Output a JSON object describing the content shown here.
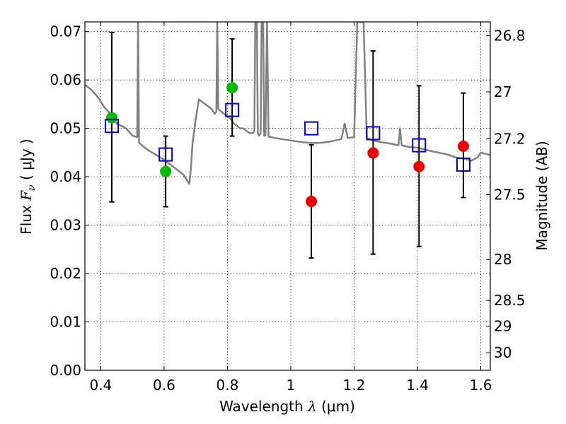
{
  "chart_data": {
    "type": "scatter",
    "xlabel": {
      "prefix": "Wavelength  ",
      "symbol": "λ",
      "unit": " (μm)"
    },
    "ylabel": {
      "prefix": "Flux  ",
      "symbol": "F",
      "subscript": "ν",
      "unit": "  ( μJy )"
    },
    "y2label": "Magnitude (AB)",
    "xlim": [
      0.35,
      1.63
    ],
    "ylim": [
      0.0,
      0.072
    ],
    "x_ticks": [
      {
        "value": 0.4,
        "label": "0.4"
      },
      {
        "value": 0.6,
        "label": "0.6"
      },
      {
        "value": 0.8,
        "label": "0.8"
      },
      {
        "value": 1.0,
        "label": "1"
      },
      {
        "value": 1.2,
        "label": "1.2"
      },
      {
        "value": 1.4,
        "label": "1.4"
      },
      {
        "value": 1.6,
        "label": "1.6"
      }
    ],
    "y_ticks": [
      {
        "value": 0.0,
        "label": "0.00"
      },
      {
        "value": 0.01,
        "label": "0.01"
      },
      {
        "value": 0.02,
        "label": "0.02"
      },
      {
        "value": 0.03,
        "label": "0.03"
      },
      {
        "value": 0.04,
        "label": "0.04"
      },
      {
        "value": 0.05,
        "label": "0.05"
      },
      {
        "value": 0.06,
        "label": "0.06"
      },
      {
        "value": 0.07,
        "label": "0.07"
      }
    ],
    "y2_ticks": [
      {
        "value": 26.8,
        "label": "26.8"
      },
      {
        "value": 27.0,
        "label": "27"
      },
      {
        "value": 27.2,
        "label": "27.2"
      },
      {
        "value": 27.5,
        "label": "27.5"
      },
      {
        "value": 28.0,
        "label": "28"
      },
      {
        "value": 28.5,
        "label": "28.5"
      },
      {
        "value": 29.0,
        "label": "29"
      },
      {
        "value": 30.0,
        "label": "30"
      }
    ],
    "grid": true,
    "series": [
      {
        "kind": "line",
        "color": "#808080",
        "points": [
          [
            0.35,
            0.059
          ],
          [
            0.37,
            0.058
          ],
          [
            0.39,
            0.0565
          ],
          [
            0.41,
            0.0545
          ],
          [
            0.43,
            0.053
          ],
          [
            0.45,
            0.051
          ],
          [
            0.48,
            0.05
          ],
          [
            0.5,
            0.0485
          ],
          [
            0.515,
            0.0482
          ],
          [
            0.518,
            0.072
          ],
          [
            0.521,
            0.047
          ],
          [
            0.53,
            0.0465
          ],
          [
            0.55,
            0.0455
          ],
          [
            0.57,
            0.0447
          ],
          [
            0.6,
            0.0435
          ],
          [
            0.62,
            0.0425
          ],
          [
            0.64,
            0.0415
          ],
          [
            0.66,
            0.0405
          ],
          [
            0.675,
            0.039
          ],
          [
            0.68,
            0.0385
          ],
          [
            0.685,
            0.042
          ],
          [
            0.69,
            0.047
          ],
          [
            0.7,
            0.052
          ],
          [
            0.71,
            0.056
          ],
          [
            0.72,
            0.0555
          ],
          [
            0.73,
            0.055
          ],
          [
            0.74,
            0.0545
          ],
          [
            0.75,
            0.054
          ],
          [
            0.76,
            0.053
          ],
          [
            0.765,
            0.0535
          ],
          [
            0.768,
            0.072
          ],
          [
            0.771,
            0.054
          ],
          [
            0.78,
            0.0535
          ],
          [
            0.79,
            0.053
          ],
          [
            0.8,
            0.0525
          ],
          [
            0.81,
            0.052
          ],
          [
            0.82,
            0.051
          ],
          [
            0.83,
            0.0505
          ],
          [
            0.84,
            0.05
          ],
          [
            0.85,
            0.05
          ],
          [
            0.86,
            0.0495
          ],
          [
            0.87,
            0.049
          ],
          [
            0.88,
            0.049
          ],
          [
            0.885,
            0.0495
          ],
          [
            0.888,
            0.072
          ],
          [
            0.893,
            0.072
          ],
          [
            0.896,
            0.049
          ],
          [
            0.9,
            0.0485
          ],
          [
            0.905,
            0.049
          ],
          [
            0.908,
            0.072
          ],
          [
            0.913,
            0.072
          ],
          [
            0.916,
            0.0485
          ],
          [
            0.92,
            0.0485
          ],
          [
            0.925,
            0.072
          ],
          [
            0.93,
            0.0483
          ],
          [
            0.95,
            0.048
          ],
          [
            0.97,
            0.0478
          ],
          [
            1.0,
            0.0475
          ],
          [
            1.03,
            0.0472
          ],
          [
            1.06,
            0.047
          ],
          [
            1.09,
            0.047
          ],
          [
            1.12,
            0.0472
          ],
          [
            1.14,
            0.0475
          ],
          [
            1.16,
            0.0478
          ],
          [
            1.17,
            0.051
          ],
          [
            1.18,
            0.048
          ],
          [
            1.2,
            0.0482
          ],
          [
            1.21,
            0.072
          ],
          [
            1.22,
            0.072
          ],
          [
            1.23,
            0.072
          ],
          [
            1.24,
            0.048
          ],
          [
            1.26,
            0.0475
          ],
          [
            1.28,
            0.0472
          ],
          [
            1.3,
            0.047
          ],
          [
            1.32,
            0.0468
          ],
          [
            1.34,
            0.0465
          ],
          [
            1.345,
            0.05
          ],
          [
            1.35,
            0.0465
          ],
          [
            1.37,
            0.0462
          ],
          [
            1.4,
            0.046
          ],
          [
            1.42,
            0.0457
          ],
          [
            1.45,
            0.0452
          ],
          [
            1.48,
            0.0448
          ],
          [
            1.5,
            0.0445
          ],
          [
            1.52,
            0.044
          ],
          [
            1.55,
            0.0437
          ],
          [
            1.57,
            0.0433
          ],
          [
            1.59,
            0.044
          ],
          [
            1.6,
            0.045
          ],
          [
            1.61,
            0.0448
          ],
          [
            1.63,
            0.0445
          ]
        ]
      },
      {
        "kind": "model_bands",
        "marker": "open-square",
        "color": "#0000cc",
        "points": [
          [
            0.435,
            0.0505
          ],
          [
            0.605,
            0.0446
          ],
          [
            0.815,
            0.0538
          ],
          [
            1.065,
            0.05
          ],
          [
            1.26,
            0.049
          ],
          [
            1.405,
            0.0465
          ],
          [
            1.545,
            0.0425
          ]
        ]
      },
      {
        "kind": "detections",
        "marker": "filled-circle",
        "color": "#00bb00",
        "points": [
          {
            "x": 0.435,
            "y": 0.0522,
            "err": [
              0.0348,
              0.0698
            ]
          },
          {
            "x": 0.605,
            "y": 0.0411,
            "err": [
              0.0338,
              0.0484
            ]
          },
          {
            "x": 0.815,
            "y": 0.0584,
            "err": [
              0.0484,
              0.0685
            ]
          }
        ]
      },
      {
        "kind": "detections",
        "marker": "filled-circle",
        "color": "#ee0000",
        "points": [
          {
            "x": 1.065,
            "y": 0.0349,
            "err": [
              0.0232,
              0.0466
            ]
          },
          {
            "x": 1.26,
            "y": 0.0449,
            "err": [
              0.024,
              0.066
            ]
          },
          {
            "x": 1.405,
            "y": 0.0421,
            "err": [
              0.0256,
              0.0588
            ]
          },
          {
            "x": 1.545,
            "y": 0.0463,
            "err": [
              0.0357,
              0.0573
            ]
          }
        ]
      }
    ]
  }
}
